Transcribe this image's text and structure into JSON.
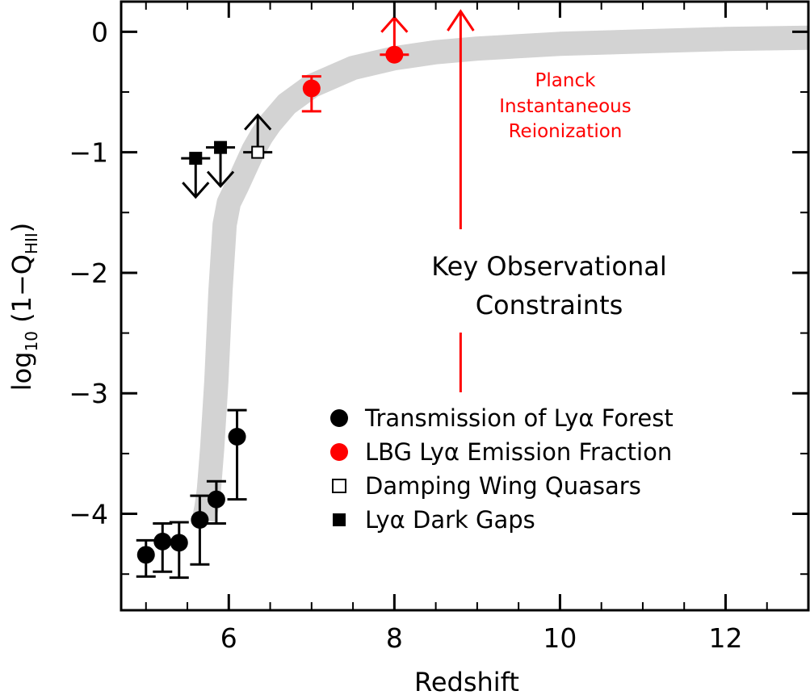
{
  "colors": {
    "accent": "#ff0000",
    "band": "#d3d3d3",
    "ink": "#000000"
  },
  "chart_data": {
    "type": "scatter",
    "xlabel": "Redshift",
    "ylabel_prefix": "log",
    "ylabel_sub": "10",
    "ylabel_mid": " (1−Q",
    "ylabel_sub2": "HII",
    "ylabel_suffix": ")",
    "xlim": [
      4.7,
      13.0
    ],
    "ylim": [
      -4.8,
      0.25
    ],
    "x_ticks": [
      6,
      8,
      10,
      12
    ],
    "x_tick_labels": [
      "6",
      "8",
      "10",
      "12"
    ],
    "y_ticks": [
      0,
      -1,
      -2,
      -3,
      -4
    ],
    "y_tick_labels": [
      "0",
      "−1",
      "−2",
      "−3",
      "−4"
    ],
    "model_band": {
      "x": [
        5.7,
        5.73,
        5.76,
        5.8,
        5.85,
        5.9,
        5.95,
        6.0,
        6.05,
        6.1,
        6.2,
        6.3,
        6.4,
        6.5,
        6.7,
        7.0,
        7.5,
        8.0,
        8.5,
        9.0,
        10.0,
        11.0,
        12.0,
        13.0
      ],
      "y": [
        -4.05,
        -3.95,
        -3.8,
        -3.45,
        -2.9,
        -2.15,
        -1.6,
        -1.42,
        -1.35,
        -1.28,
        -1.13,
        -0.98,
        -0.86,
        -0.76,
        -0.6,
        -0.45,
        -0.3,
        -0.22,
        -0.17,
        -0.14,
        -0.1,
        -0.08,
        -0.06,
        -0.05
      ]
    },
    "series": [
      {
        "name": "Transmission of Lyα Forest",
        "marker": "filled-circle",
        "color": "#000000",
        "points": [
          {
            "x": 5.0,
            "y": -4.34,
            "ylo": -4.52,
            "yhi": -4.22
          },
          {
            "x": 5.2,
            "y": -4.23,
            "ylo": -4.48,
            "yhi": -4.08
          },
          {
            "x": 5.4,
            "y": -4.24,
            "ylo": -4.53,
            "yhi": -4.07
          },
          {
            "x": 5.65,
            "y": -4.05,
            "ylo": -4.42,
            "yhi": -3.85
          },
          {
            "x": 5.85,
            "y": -3.88,
            "ylo": -4.08,
            "yhi": -3.73
          },
          {
            "x": 6.1,
            "y": -3.36,
            "ylo": -3.88,
            "yhi": -3.14
          }
        ]
      },
      {
        "name": "LBG Lyα Emission Fraction",
        "marker": "filled-circle",
        "color": "#ff0000",
        "points": [
          {
            "x": 7.0,
            "y": -0.47,
            "ylo": -0.66,
            "yhi": -0.37
          },
          {
            "x": 8.0,
            "y": -0.19,
            "lower_limit": true
          }
        ]
      },
      {
        "name": "Damping Wing Quasars",
        "marker": "open-square",
        "color": "#000000",
        "points": [
          {
            "x": 6.35,
            "y": -1.0,
            "lower_limit": true
          }
        ]
      },
      {
        "name": "Lyα Dark Gaps",
        "marker": "filled-square",
        "color": "#000000",
        "points": [
          {
            "x": 5.6,
            "y": -1.05,
            "upper_limit": true
          },
          {
            "x": 5.9,
            "y": -0.96,
            "upper_limit": true
          }
        ]
      }
    ],
    "annotations": {
      "key_line1": "Key Observational",
      "key_line2": "Constraints",
      "planck_line1": "Planck",
      "planck_line2": "Instantaneous",
      "planck_line3": "Reionization",
      "planck_x": 8.8
    },
    "legend_position": "lower-right",
    "grid": false
  }
}
